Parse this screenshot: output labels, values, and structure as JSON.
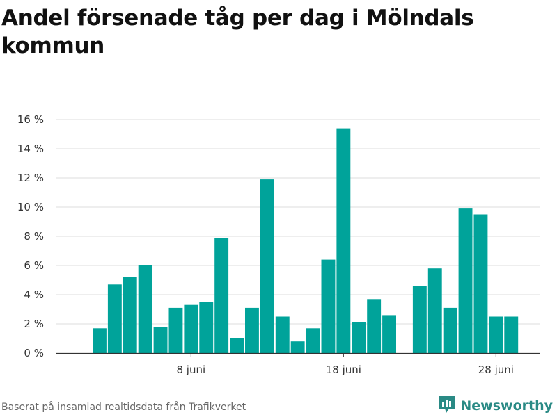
{
  "title": "Andel försenade tåg per dag i Mölndals kommun",
  "footer": {
    "source": "Baserat på insamlad realtidsdata från Trafikverket",
    "brand": "Newsworthy",
    "brand_icon": "newsworthy-logo-icon"
  },
  "colors": {
    "bar": "#00A39A",
    "grid": "#dddddd",
    "axis": "#333333",
    "brand": "#2a8a85"
  },
  "chart_data": {
    "type": "bar",
    "title": "Andel försenade tåg per dag i Mölndals kommun",
    "xlabel": "",
    "ylabel": "",
    "x": [
      "2 juni",
      "3 juni",
      "4 juni",
      "5 juni",
      "6 juni",
      "7 juni",
      "8 juni",
      "9 juni",
      "10 juni",
      "11 juni",
      "12 juni",
      "13 juni",
      "14 juni",
      "15 juni",
      "16 juni",
      "17 juni",
      "18 juni",
      "19 juni",
      "20 juni",
      "21 juni",
      "22 juni",
      "23 juni",
      "24 juni",
      "25 juni",
      "26 juni",
      "27 juni",
      "28 juni",
      "29 juni",
      "30 juni"
    ],
    "values": [
      1.7,
      4.7,
      5.2,
      6.0,
      1.8,
      3.1,
      3.3,
      3.5,
      7.9,
      1.0,
      3.1,
      11.9,
      2.5,
      0.8,
      1.7,
      6.4,
      15.4,
      2.1,
      3.7,
      2.6,
      null,
      4.6,
      5.8,
      3.1,
      9.9,
      9.5,
      2.5,
      2.5,
      null
    ],
    "xticks": [
      "8 juni",
      "18 juni",
      "28 juni"
    ],
    "yticks": [
      "0 %",
      "2 %",
      "4 %",
      "6 %",
      "8 %",
      "10 %",
      "12 %",
      "14 %",
      "16 %"
    ],
    "ylim": [
      0,
      16
    ],
    "grid": true,
    "legend": "none"
  }
}
